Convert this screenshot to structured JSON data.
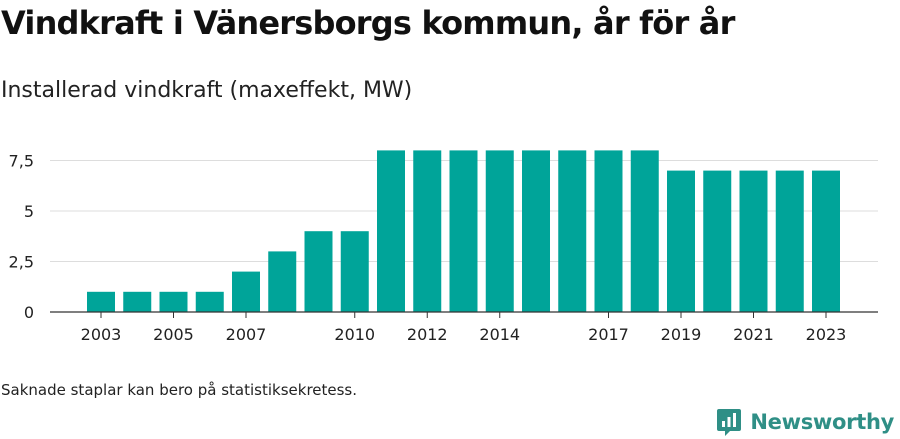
{
  "title": "Vindkraft i Vänersborgs kommun, år för år",
  "subtitle": "Installerad vindkraft (maxeffekt, MW)",
  "footnote": "Saknade staplar kan bero på statistiksekretess.",
  "brand": {
    "name": "Newsworthy",
    "logo_icon": "newsworthy-logo-icon"
  },
  "colors": {
    "bar": "#00a499",
    "grid": "#dddddd",
    "axis": "#333333",
    "brand": "#2f8f86"
  },
  "chart_data": {
    "type": "bar",
    "categories": [
      2003,
      2004,
      2005,
      2006,
      2007,
      2008,
      2009,
      2010,
      2011,
      2012,
      2013,
      2014,
      2015,
      2016,
      2017,
      2018,
      2019,
      2020,
      2021,
      2022,
      2023
    ],
    "values": [
      1,
      1,
      1,
      1,
      2,
      3,
      4,
      4,
      8,
      8,
      8,
      8,
      8,
      8,
      8,
      8,
      7,
      7,
      7,
      7,
      7
    ],
    "x_tick_labels": [
      "2003",
      "2005",
      "2007",
      "2010",
      "2012",
      "2014",
      "2017",
      "2019",
      "2021",
      "2023"
    ],
    "y_ticks": [
      0,
      2.5,
      5,
      7.5
    ],
    "y_tick_labels": [
      "0",
      "2,5",
      "5",
      "7,5"
    ],
    "ylim": [
      0,
      8.2
    ],
    "grid": true,
    "legend": "none"
  }
}
